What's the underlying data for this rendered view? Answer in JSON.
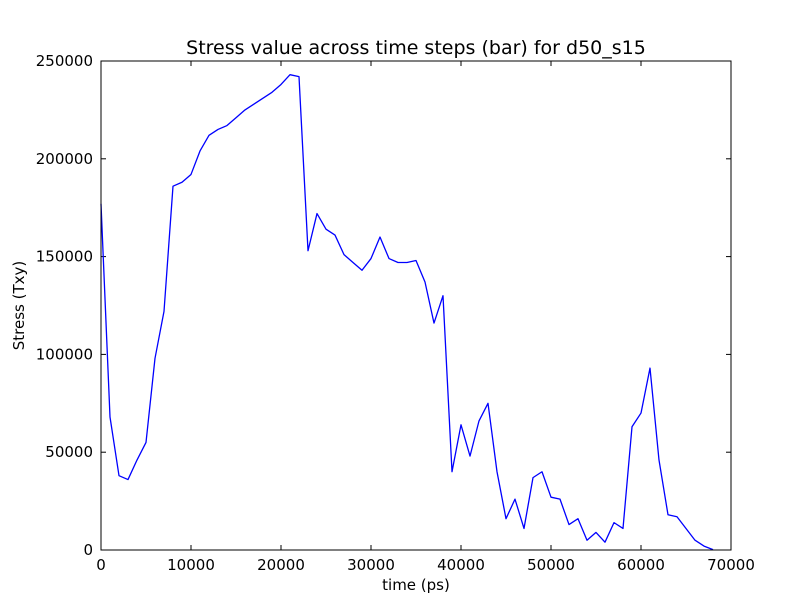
{
  "chart_data": {
    "type": "line",
    "title": "Stress value across time steps (bar) for d50_s15",
    "xlabel": "time (ps)",
    "ylabel": "Stress (Txy)",
    "xlim": [
      0,
      70000
    ],
    "ylim": [
      0,
      250000
    ],
    "xticks": [
      0,
      10000,
      20000,
      30000,
      40000,
      50000,
      60000,
      70000
    ],
    "yticks": [
      0,
      50000,
      100000,
      150000,
      200000,
      250000
    ],
    "grid": false,
    "series": [
      {
        "color": "#0000ff",
        "x": [
          0,
          1000,
          2000,
          3000,
          4000,
          5000,
          6000,
          7000,
          8000,
          9000,
          10000,
          11000,
          12000,
          13000,
          14000,
          15000,
          16000,
          17000,
          18000,
          19000,
          20000,
          21000,
          22000,
          23000,
          24000,
          25000,
          26000,
          27000,
          28000,
          29000,
          30000,
          31000,
          32000,
          33000,
          34000,
          35000,
          36000,
          37000,
          38000,
          39000,
          40000,
          41000,
          42000,
          43000,
          44000,
          45000,
          46000,
          47000,
          48000,
          49000,
          50000,
          51000,
          52000,
          53000,
          54000,
          55000,
          56000,
          57000,
          58000,
          59000,
          60000,
          61000,
          62000,
          63000,
          64000,
          65000,
          66000,
          67000,
          68000
        ],
        "y": [
          177000,
          68000,
          38000,
          36000,
          46000,
          55000,
          98000,
          122000,
          186000,
          188000,
          192000,
          204000,
          212000,
          215000,
          217000,
          221000,
          225000,
          228000,
          231000,
          234000,
          238000,
          243000,
          242000,
          153000,
          172000,
          164000,
          161000,
          151000,
          147000,
          143000,
          149000,
          160000,
          149000,
          147000,
          147000,
          148000,
          137000,
          116000,
          130000,
          40000,
          64000,
          48000,
          66000,
          75000,
          40000,
          16000,
          26000,
          11000,
          37000,
          40000,
          27000,
          26000,
          13000,
          16000,
          5000,
          9000,
          4000,
          14000,
          11000,
          63000,
          70000,
          93000,
          46000,
          18000,
          17000,
          11000,
          5000,
          2000,
          200
        ]
      }
    ]
  }
}
